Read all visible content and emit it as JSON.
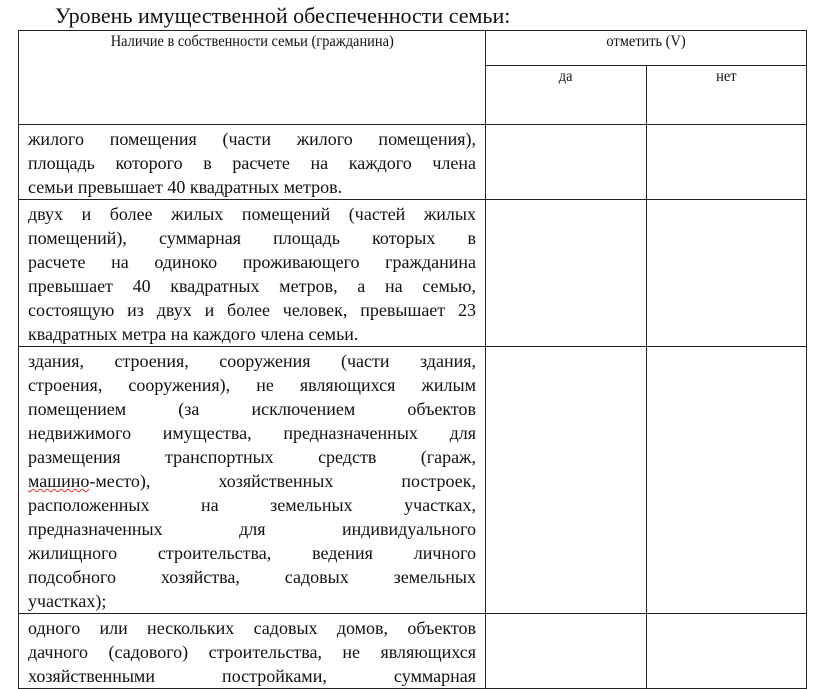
{
  "title": "Уровень имущественной обеспеченности семьи:",
  "table": {
    "header_property": "Наличие в собственности семьи (гражданина)",
    "header_mark": "отметить (V)",
    "header_yes": "да",
    "header_no": "нет",
    "rows": [
      {
        "lines": [
          "жилого помещения (части жилого помещения),",
          "площадь которого в расчете на каждого члена",
          "семьи превышает 40 квадратных метров."
        ],
        "yes": "",
        "no": ""
      },
      {
        "lines": [
          "двух и более жилых помещений (частей жилых",
          "помещений), суммарная площадь которых в",
          "расчете на одиноко проживающего гражданина",
          "превышает 40 квадратных метров, а на семью,",
          "состоящую из двух и более человек, превышает 23",
          "квадратных метра на каждого члена семьи."
        ],
        "yes": "",
        "no": ""
      },
      {
        "lines": [
          "здания, строения, сооружения (части здания,",
          "строения, сооружения), не являющихся жилым",
          "помещением (за исключением объектов",
          "недвижимого имущества, предназначенных для",
          "размещения транспортных средств (гараж,",
          "машино-место), хозяйственных построек,",
          "расположенных на земельных участках,",
          "предназначенных для индивидуального",
          "жилищного строительства, ведения личного",
          "подсобного хозяйства, садовых земельных",
          "участках);"
        ],
        "yes": "",
        "no": ""
      },
      {
        "lines": [
          "одного или нескольких садовых домов, объектов",
          "дачного (садового) строительства, не являющихся",
          "хозяйственными постройками, суммарная"
        ],
        "yes": "",
        "no": ""
      }
    ]
  }
}
